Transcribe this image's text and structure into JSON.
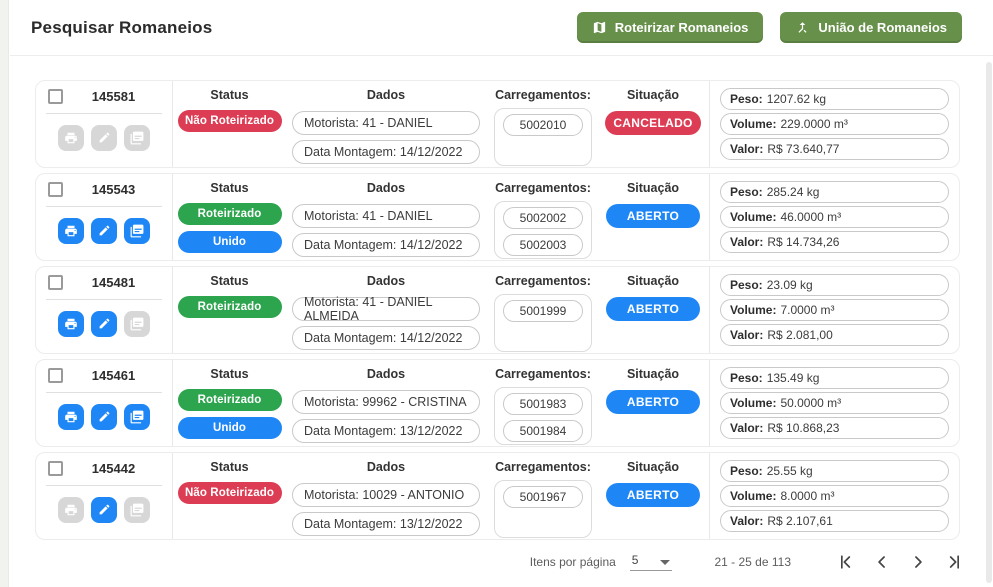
{
  "page": {
    "title": "Pesquisar Romaneios"
  },
  "header": {
    "buttons": [
      {
        "label": "Roteirizar Romaneios",
        "icon": "map-icon"
      },
      {
        "label": "União de Romaneios",
        "icon": "merge-icon"
      }
    ]
  },
  "labels": {
    "status": "Status",
    "dados": "Dados",
    "carregamentos": "Carregamentos:",
    "situacao": "Situação",
    "peso": "Peso:",
    "volume": "Volume:",
    "valor": "Valor:"
  },
  "colors": {
    "red": "#dc3d54",
    "green": "#2da44e",
    "blue": "#1f87f5",
    "button_green": "#67904b",
    "disabled_gray": "#d7d7d7"
  },
  "rows": [
    {
      "id": "145581",
      "statuses": [
        {
          "label": "Não Roteirizado",
          "color": "red"
        }
      ],
      "motorista": "Motorista: 41 - DANIEL",
      "data_montagem": "Data Montagem: 14/12/2022",
      "carregamentos": [
        "5002010"
      ],
      "situacao": {
        "label": "CANCELADO",
        "color": "red"
      },
      "peso": "1207.62 kg",
      "volume": "229.0000 m³",
      "valor": "R$ 73.640,77",
      "actions": {
        "print": false,
        "edit": false,
        "copy": false
      }
    },
    {
      "id": "145543",
      "statuses": [
        {
          "label": "Roteirizado",
          "color": "green"
        },
        {
          "label": "Unido",
          "color": "blue"
        }
      ],
      "motorista": "Motorista: 41 - DANIEL",
      "data_montagem": "Data Montagem: 14/12/2022",
      "carregamentos": [
        "5002002",
        "5002003"
      ],
      "situacao": {
        "label": "ABERTO",
        "color": "blue"
      },
      "peso": "285.24 kg",
      "volume": "46.0000 m³",
      "valor": "R$ 14.734,26",
      "actions": {
        "print": true,
        "edit": true,
        "copy": true
      }
    },
    {
      "id": "145481",
      "statuses": [
        {
          "label": "Roteirizado",
          "color": "green"
        }
      ],
      "motorista": "Motorista: 41 - DANIEL ALMEIDA",
      "data_montagem": "Data Montagem: 14/12/2022",
      "carregamentos": [
        "5001999"
      ],
      "situacao": {
        "label": "ABERTO",
        "color": "blue"
      },
      "peso": "23.09 kg",
      "volume": "7.0000 m³",
      "valor": "R$ 2.081,00",
      "actions": {
        "print": true,
        "edit": true,
        "copy": false
      }
    },
    {
      "id": "145461",
      "statuses": [
        {
          "label": "Roteirizado",
          "color": "green"
        },
        {
          "label": "Unido",
          "color": "blue"
        }
      ],
      "motorista": "Motorista: 99962 - CRISTINA",
      "data_montagem": "Data Montagem: 13/12/2022",
      "carregamentos": [
        "5001983",
        "5001984"
      ],
      "situacao": {
        "label": "ABERTO",
        "color": "blue"
      },
      "peso": "135.49 kg",
      "volume": "50.0000 m³",
      "valor": "R$ 10.868,23",
      "actions": {
        "print": true,
        "edit": true,
        "copy": true
      }
    },
    {
      "id": "145442",
      "statuses": [
        {
          "label": "Não Roteirizado",
          "color": "red"
        }
      ],
      "motorista": "Motorista: 10029 - ANTONIO",
      "data_montagem": "Data Montagem: 13/12/2022",
      "carregamentos": [
        "5001967"
      ],
      "situacao": {
        "label": "ABERTO",
        "color": "blue"
      },
      "peso": "25.55 kg",
      "volume": "8.0000 m³",
      "valor": "R$ 2.107,61",
      "actions": {
        "print": false,
        "edit": true,
        "copy": false
      }
    }
  ],
  "pagination": {
    "items_per_page_label": "Itens por página",
    "items_per_page_value": "5",
    "range_label": "21 - 25 de 113"
  }
}
